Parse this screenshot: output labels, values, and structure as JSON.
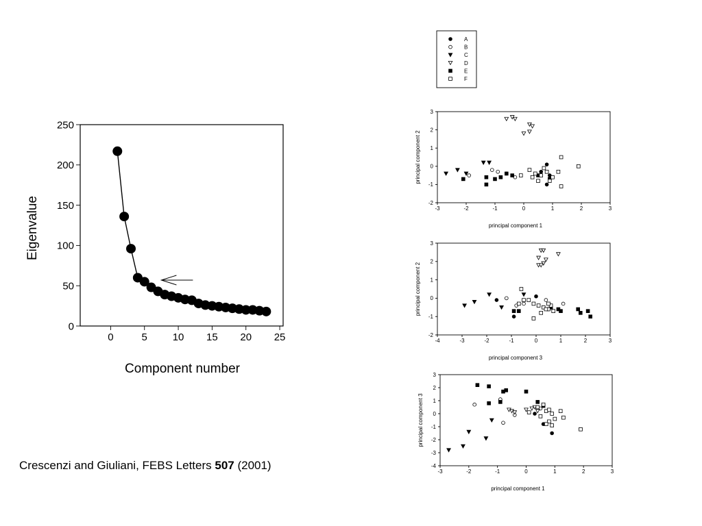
{
  "citation": {
    "text": "Crescenzi and Giuliani, FEBS Letters ",
    "volume": "507",
    "year": " (2001)"
  },
  "chart_data": [
    {
      "id": "scree",
      "type": "line",
      "xlabel": "Component number",
      "ylabel": "Eigenvalue",
      "xlim": [
        -4.5,
        25.5
      ],
      "ylim": [
        0,
        250
      ],
      "xticks": [
        "0",
        "5",
        "10",
        "15",
        "20",
        "25"
      ],
      "yticks": [
        "0",
        "50",
        "100",
        "150",
        "200",
        "250"
      ],
      "series": [
        {
          "x": [
            1,
            2,
            3,
            4,
            5,
            6,
            7,
            8,
            9,
            10,
            11,
            12,
            13,
            14,
            15,
            16,
            17,
            18,
            19,
            20,
            21,
            22,
            23
          ],
          "y": [
            217,
            136,
            96,
            60,
            55,
            48,
            43,
            39,
            37,
            35,
            33,
            32,
            28,
            26,
            25,
            24,
            23,
            22,
            21,
            20,
            20,
            19,
            18
          ]
        }
      ],
      "annotations": [
        {
          "type": "arrow",
          "x": 7.5,
          "y": 57,
          "points": "left"
        }
      ]
    },
    {
      "id": "pc1_pc2",
      "type": "scatter",
      "xlabel": "principal component 1",
      "ylabel": "principal component 2",
      "xlim": [
        -3,
        3
      ],
      "ylim": [
        -2,
        3
      ],
      "xticks": [
        "-3",
        "-2",
        "-1",
        "0",
        "1",
        "2",
        "3"
      ],
      "yticks": [
        "-2",
        "-1",
        "0",
        "1",
        "2",
        "3"
      ],
      "series": [
        {
          "name": "A",
          "marker": "filled-circle",
          "points": [
            [
              0.8,
              0.1
            ],
            [
              0.8,
              -1.0
            ],
            [
              0.6,
              -0.3
            ],
            [
              0.9,
              -0.5
            ]
          ]
        },
        {
          "name": "B",
          "marker": "open-circle",
          "points": [
            [
              -0.9,
              -0.3
            ],
            [
              -0.6,
              -0.4
            ],
            [
              -1.9,
              -0.5
            ],
            [
              -1.1,
              -0.2
            ],
            [
              -0.3,
              -0.6
            ]
          ]
        },
        {
          "name": "C",
          "marker": "filled-triangle-down",
          "points": [
            [
              -2.7,
              -0.4
            ],
            [
              -2.3,
              -0.2
            ],
            [
              -2.0,
              -0.4
            ],
            [
              -1.4,
              0.2
            ],
            [
              -1.2,
              0.2
            ]
          ]
        },
        {
          "name": "D",
          "marker": "open-triangle-down",
          "points": [
            [
              -0.6,
              2.6
            ],
            [
              -0.4,
              2.7
            ],
            [
              -0.3,
              2.6
            ],
            [
              0.2,
              2.3
            ],
            [
              0.3,
              2.2
            ],
            [
              0.2,
              1.9
            ],
            [
              0.0,
              1.8
            ]
          ]
        },
        {
          "name": "E",
          "marker": "filled-square",
          "points": [
            [
              -1.3,
              -0.6
            ],
            [
              -1.0,
              -0.7
            ],
            [
              -0.8,
              -0.6
            ],
            [
              -0.6,
              -0.4
            ],
            [
              -0.4,
              -0.5
            ],
            [
              0.5,
              -0.5
            ],
            [
              0.9,
              -0.7
            ],
            [
              -1.3,
              -1.0
            ],
            [
              -2.1,
              -0.7
            ]
          ]
        },
        {
          "name": "F",
          "marker": "open-square",
          "points": [
            [
              0.2,
              -0.2
            ],
            [
              0.4,
              -0.4
            ],
            [
              0.6,
              -0.5
            ],
            [
              0.8,
              -0.3
            ],
            [
              1.0,
              -0.6
            ],
            [
              1.2,
              -0.3
            ],
            [
              1.3,
              0.5
            ],
            [
              1.3,
              -1.1
            ],
            [
              1.9,
              0.0
            ],
            [
              0.9,
              -0.8
            ],
            [
              0.7,
              -0.1
            ],
            [
              0.3,
              -0.6
            ],
            [
              0.5,
              -0.8
            ],
            [
              -0.1,
              -0.5
            ]
          ]
        }
      ],
      "legend": {
        "position": "top",
        "entries": [
          "A",
          "B",
          "C",
          "D",
          "E",
          "F"
        ]
      }
    },
    {
      "id": "pc3_pc2",
      "type": "scatter",
      "xlabel": "principal component 3",
      "ylabel": "principal component 2",
      "xlim": [
        -4,
        3
      ],
      "ylim": [
        -2,
        3
      ],
      "xticks": [
        "-4",
        "-3",
        "-2",
        "-1",
        "0",
        "1",
        "2",
        "3"
      ],
      "yticks": [
        "-2",
        "-1",
        "0",
        "1",
        "2",
        "3"
      ],
      "series": [
        {
          "name": "A",
          "marker": "filled-circle",
          "points": [
            [
              -1.6,
              -0.1
            ],
            [
              0.0,
              0.1
            ],
            [
              -0.9,
              -1.0
            ],
            [
              0.5,
              -0.6
            ]
          ]
        },
        {
          "name": "B",
          "marker": "open-circle",
          "points": [
            [
              -1.2,
              0.0
            ],
            [
              0.4,
              -0.1
            ],
            [
              1.1,
              -0.3
            ],
            [
              -0.5,
              -0.3
            ],
            [
              -0.8,
              -0.4
            ]
          ]
        },
        {
          "name": "C",
          "marker": "filled-triangle-down",
          "points": [
            [
              -2.9,
              -0.4
            ],
            [
              -2.5,
              -0.2
            ],
            [
              -1.9,
              0.2
            ],
            [
              -1.4,
              -0.5
            ],
            [
              -0.5,
              0.2
            ]
          ]
        },
        {
          "name": "D",
          "marker": "open-triangle-down",
          "points": [
            [
              0.2,
              2.6
            ],
            [
              0.3,
              2.6
            ],
            [
              0.9,
              2.4
            ],
            [
              0.1,
              2.2
            ],
            [
              0.4,
              2.1
            ],
            [
              0.3,
              1.9
            ],
            [
              0.1,
              1.8
            ],
            [
              0.2,
              1.8
            ]
          ]
        },
        {
          "name": "E",
          "marker": "filled-square",
          "points": [
            [
              1.7,
              -0.6
            ],
            [
              1.8,
              -0.8
            ],
            [
              2.1,
              -0.7
            ],
            [
              2.2,
              -1.0
            ],
            [
              1.0,
              -0.7
            ],
            [
              0.6,
              -0.5
            ],
            [
              -0.7,
              -0.7
            ],
            [
              -0.9,
              -0.7
            ],
            [
              0.9,
              -0.6
            ]
          ]
        },
        {
          "name": "F",
          "marker": "open-square",
          "points": [
            [
              -0.6,
              0.5
            ],
            [
              -0.7,
              -0.3
            ],
            [
              -0.5,
              -0.1
            ],
            [
              -0.3,
              -0.1
            ],
            [
              -0.1,
              -0.3
            ],
            [
              0.1,
              -0.4
            ],
            [
              0.3,
              -0.5
            ],
            [
              0.5,
              -0.6
            ],
            [
              0.6,
              -0.4
            ],
            [
              0.7,
              -0.7
            ],
            [
              0.4,
              -0.6
            ],
            [
              0.2,
              -0.8
            ],
            [
              -0.1,
              -1.1
            ],
            [
              0.5,
              -0.3
            ]
          ]
        }
      ]
    },
    {
      "id": "pc1_pc3",
      "type": "scatter",
      "xlabel": "principal component 1",
      "ylabel": "principal component 3",
      "xlim": [
        -3,
        3
      ],
      "ylim": [
        -4,
        3
      ],
      "xticks": [
        "-3",
        "-2",
        "-1",
        "0",
        "1",
        "2",
        "3"
      ],
      "yticks": [
        "-4",
        "-3",
        "-2",
        "-1",
        "0",
        "1",
        "2",
        "3"
      ],
      "series": [
        {
          "name": "A",
          "marker": "filled-circle",
          "points": [
            [
              0.6,
              -0.8
            ],
            [
              0.9,
              -1.5
            ],
            [
              -0.9,
              1.0
            ],
            [
              0.3,
              0.0
            ]
          ]
        },
        {
          "name": "B",
          "marker": "open-circle",
          "points": [
            [
              -1.8,
              0.7
            ],
            [
              -0.8,
              -0.7
            ],
            [
              -0.4,
              -0.1
            ],
            [
              -0.9,
              1.1
            ],
            [
              0.5,
              0.4
            ]
          ]
        },
        {
          "name": "C",
          "marker": "filled-triangle-down",
          "points": [
            [
              -2.7,
              -2.8
            ],
            [
              -2.2,
              -2.5
            ],
            [
              -2.0,
              -1.4
            ],
            [
              -1.4,
              -1.9
            ],
            [
              -1.2,
              -0.5
            ]
          ]
        },
        {
          "name": "D",
          "marker": "open-triangle-down",
          "points": [
            [
              -0.6,
              0.3
            ],
            [
              -0.5,
              0.2
            ],
            [
              -0.4,
              0.1
            ],
            [
              0.2,
              0.4
            ],
            [
              0.3,
              0.5
            ],
            [
              0.4,
              0.2
            ],
            [
              0.0,
              0.3
            ]
          ]
        },
        {
          "name": "E",
          "marker": "filled-square",
          "points": [
            [
              -1.7,
              2.2
            ],
            [
              -1.3,
              2.1
            ],
            [
              -0.8,
              1.7
            ],
            [
              -0.7,
              1.8
            ],
            [
              -0.9,
              0.9
            ],
            [
              0.0,
              1.7
            ],
            [
              -1.3,
              0.8
            ],
            [
              0.4,
              0.9
            ],
            [
              0.6,
              0.6
            ]
          ]
        },
        {
          "name": "F",
          "marker": "open-square",
          "points": [
            [
              0.4,
              0.5
            ],
            [
              0.6,
              0.7
            ],
            [
              0.7,
              0.2
            ],
            [
              0.8,
              0.3
            ],
            [
              0.9,
              0.0
            ],
            [
              1.0,
              -0.4
            ],
            [
              1.2,
              0.2
            ],
            [
              1.3,
              -0.3
            ],
            [
              1.9,
              -1.2
            ],
            [
              0.8,
              -0.6
            ],
            [
              0.7,
              -0.8
            ],
            [
              0.9,
              -0.9
            ],
            [
              0.1,
              0.1
            ],
            [
              0.5,
              -0.2
            ]
          ]
        }
      ]
    }
  ]
}
